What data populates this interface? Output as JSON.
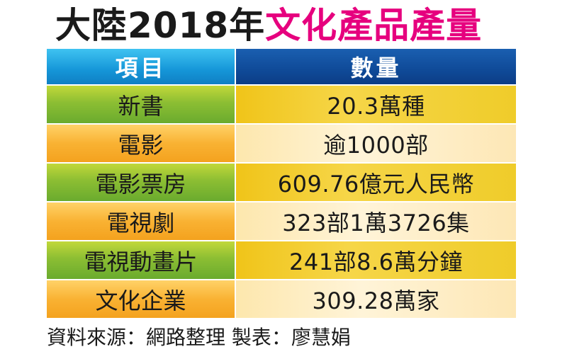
{
  "title": {
    "part1": "大陸2018年",
    "part2": "文化產品產量"
  },
  "table": {
    "headers": {
      "item": "項目",
      "value": "數量"
    },
    "rows": [
      {
        "item": "新書",
        "value": "20.3萬種"
      },
      {
        "item": "電影",
        "value": "逾1000部"
      },
      {
        "item": "電影票房",
        "value": "609.76億元人民幣"
      },
      {
        "item": "電視劇",
        "value": "323部1萬3726集"
      },
      {
        "item": "電視動畫片",
        "value": "241部8.6萬分鐘"
      },
      {
        "item": "文化企業",
        "value": "309.28萬家"
      }
    ]
  },
  "footer": "資料來源：網路整理  製表：廖慧娟",
  "colors": {
    "title_black": "#1a1a1a",
    "title_pink": "#e6007e",
    "header_left": "#1596d8",
    "header_right": "#0f4a98",
    "row_green": "#8cbe33",
    "row_orange": "#f9b233",
    "cell_yellow": "#f6d648",
    "cell_cream": "#fff4d8"
  }
}
